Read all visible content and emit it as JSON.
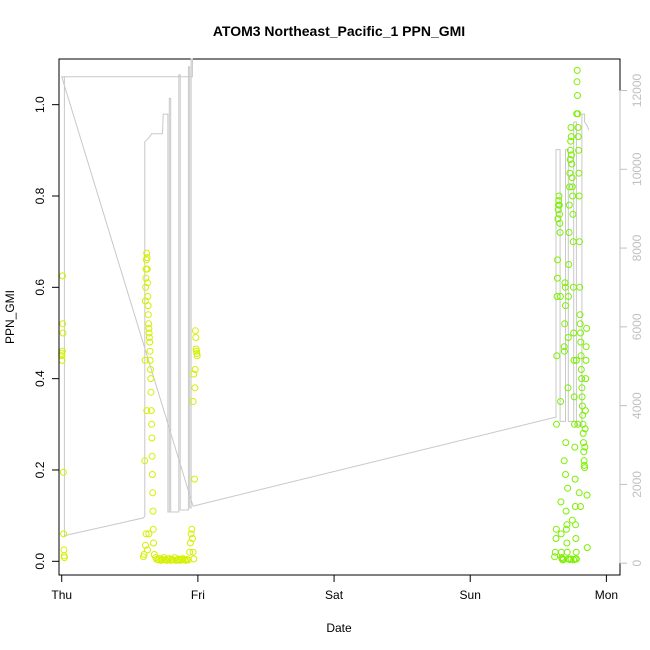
{
  "chart_data": {
    "type": "scatter",
    "title": "ATOM3 Northeast_Pacific_1 PPN_GMI",
    "xlabel": "Date",
    "ylabel": "PPN_GMI",
    "x_unit": "days since Thu 00:00",
    "xlim": [
      -0.02,
      4.1
    ],
    "ylim": [
      -0.03,
      1.1
    ],
    "x_ticks": [
      {
        "value": 0,
        "label": "Thu"
      },
      {
        "value": 1,
        "label": "Fri"
      },
      {
        "value": 2,
        "label": "Sat"
      },
      {
        "value": 3,
        "label": "Sun"
      },
      {
        "value": 4,
        "label": "Mon"
      }
    ],
    "y_ticks": [
      {
        "value": 0.0,
        "label": "0.0"
      },
      {
        "value": 0.2,
        "label": "0.2"
      },
      {
        "value": 0.4,
        "label": "0.4"
      },
      {
        "value": 0.6,
        "label": "0.6"
      },
      {
        "value": 0.8,
        "label": "0.8"
      },
      {
        "value": 1.0,
        "label": "1.0"
      }
    ],
    "y2lim": [
      -300,
      12800
    ],
    "y2_ticks": [
      {
        "value": 0,
        "label": "0"
      },
      {
        "value": 2000,
        "label": "2000"
      },
      {
        "value": 4000,
        "label": "4000"
      },
      {
        "value": 6000,
        "label": "6000"
      },
      {
        "value": 8000,
        "label": "8000"
      },
      {
        "value": 10000,
        "label": "10000"
      },
      {
        "value": 12000,
        "label": "12000"
      }
    ],
    "colors": {
      "points_early": "#d4f000",
      "points_late": "#7cf000",
      "depth_line": "#c8c8c8",
      "axis": "#000000",
      "right_axis": "#c0c0c0"
    },
    "series": [
      {
        "type": "scatter",
        "values": [
          [
            0.0,
            0.455
          ],
          [
            0.0,
            0.45
          ],
          [
            0.002,
            0.44
          ],
          [
            0.004,
            0.46
          ],
          [
            0.006,
            0.625
          ],
          [
            0.008,
            0.52
          ],
          [
            0.01,
            0.5
          ],
          [
            0.012,
            0.195
          ],
          [
            0.014,
            0.06
          ],
          [
            0.016,
            0.025
          ],
          [
            0.018,
            0.012
          ],
          [
            0.02,
            0.008
          ],
          [
            0.6,
            0.01
          ],
          [
            0.605,
            0.015
          ],
          [
            0.61,
            0.22
          ],
          [
            0.612,
            0.44
          ],
          [
            0.614,
            0.57
          ],
          [
            0.616,
            0.6
          ],
          [
            0.618,
            0.62
          ],
          [
            0.62,
            0.64
          ],
          [
            0.622,
            0.66
          ],
          [
            0.624,
            0.675
          ],
          [
            0.626,
            0.665
          ],
          [
            0.628,
            0.64
          ],
          [
            0.63,
            0.61
          ],
          [
            0.632,
            0.58
          ],
          [
            0.634,
            0.56
          ],
          [
            0.636,
            0.54
          ],
          [
            0.638,
            0.52
          ],
          [
            0.64,
            0.51
          ],
          [
            0.642,
            0.5
          ],
          [
            0.644,
            0.49
          ],
          [
            0.646,
            0.48
          ],
          [
            0.648,
            0.46
          ],
          [
            0.65,
            0.44
          ],
          [
            0.652,
            0.42
          ],
          [
            0.654,
            0.4
          ],
          [
            0.656,
            0.37
          ],
          [
            0.658,
            0.33
          ],
          [
            0.66,
            0.3
          ],
          [
            0.662,
            0.27
          ],
          [
            0.664,
            0.23
          ],
          [
            0.666,
            0.19
          ],
          [
            0.668,
            0.15
          ],
          [
            0.67,
            0.11
          ],
          [
            0.672,
            0.07
          ],
          [
            0.674,
            0.04
          ],
          [
            0.62,
            0.06
          ],
          [
            0.615,
            0.035
          ],
          [
            0.625,
            0.33
          ],
          [
            0.63,
            0.025
          ],
          [
            0.64,
            0.06
          ],
          [
            0.68,
            0.015
          ],
          [
            0.69,
            0.008
          ],
          [
            0.7,
            0.004
          ],
          [
            0.71,
            0.003
          ],
          [
            0.72,
            0.006
          ],
          [
            0.73,
            0.002
          ],
          [
            0.74,
            0.004
          ],
          [
            0.75,
            0.008
          ],
          [
            0.76,
            0.003
          ],
          [
            0.77,
            0.002
          ],
          [
            0.78,
            0.005
          ],
          [
            0.79,
            0.006
          ],
          [
            0.8,
            0.002
          ],
          [
            0.81,
            0.004
          ],
          [
            0.82,
            0.003
          ],
          [
            0.83,
            0.008
          ],
          [
            0.84,
            0.002
          ],
          [
            0.85,
            0.003
          ],
          [
            0.86,
            0.005
          ],
          [
            0.87,
            0.002
          ],
          [
            0.88,
            0.004
          ],
          [
            0.89,
            0.006
          ],
          [
            0.9,
            0.003
          ],
          [
            0.91,
            0.002
          ],
          [
            0.92,
            0.004
          ],
          [
            0.93,
            0.003
          ],
          [
            0.94,
            0.02
          ],
          [
            0.945,
            0.04
          ],
          [
            0.95,
            0.06
          ],
          [
            0.955,
            0.07
          ],
          [
            0.96,
            0.05
          ],
          [
            0.965,
            0.02
          ],
          [
            0.97,
            0.005
          ],
          [
            0.975,
            0.18
          ],
          [
            0.978,
            0.38
          ],
          [
            0.98,
            0.42
          ],
          [
            0.982,
            0.505
          ],
          [
            0.985,
            0.49
          ],
          [
            0.987,
            0.465
          ],
          [
            0.99,
            0.46
          ],
          [
            0.992,
            0.455
          ],
          [
            0.995,
            0.45
          ],
          [
            0.97,
            0.41
          ],
          [
            0.965,
            0.35
          ],
          [
            3.62,
            0.01
          ],
          [
            3.625,
            0.02
          ],
          [
            3.63,
            0.05
          ],
          [
            3.632,
            0.07
          ],
          [
            3.634,
            0.3
          ],
          [
            3.636,
            0.45
          ],
          [
            3.638,
            0.58
          ],
          [
            3.64,
            0.62
          ],
          [
            3.642,
            0.66
          ],
          [
            3.644,
            0.75
          ],
          [
            3.646,
            0.77
          ],
          [
            3.648,
            0.78
          ],
          [
            3.65,
            0.79
          ],
          [
            3.652,
            0.8
          ],
          [
            3.654,
            0.78
          ],
          [
            3.656,
            0.76
          ],
          [
            3.658,
            0.74
          ],
          [
            3.66,
            0.72
          ],
          [
            3.662,
            0.58
          ],
          [
            3.664,
            0.35
          ],
          [
            3.666,
            0.13
          ],
          [
            3.668,
            0.06
          ],
          [
            3.67,
            0.02
          ],
          [
            3.672,
            0.008
          ],
          [
            3.675,
            0.005
          ],
          [
            3.68,
            0.003
          ],
          [
            3.685,
            0.004
          ],
          [
            3.69,
            0.47
          ],
          [
            3.692,
            0.46
          ],
          [
            3.694,
            0.52
          ],
          [
            3.696,
            0.61
          ],
          [
            3.698,
            0.6
          ],
          [
            3.7,
            0.56
          ],
          [
            3.702,
            0.26
          ],
          [
            3.704,
            0.11
          ],
          [
            3.706,
            0.07
          ],
          [
            3.71,
            0.04
          ],
          [
            3.712,
            0.02
          ],
          [
            3.715,
            0.16
          ],
          [
            3.718,
            0.38
          ],
          [
            3.72,
            0.49
          ],
          [
            3.722,
            0.58
          ],
          [
            3.724,
            0.65
          ],
          [
            3.726,
            0.72
          ],
          [
            3.728,
            0.78
          ],
          [
            3.73,
            0.82
          ],
          [
            3.732,
            0.85
          ],
          [
            3.734,
            0.88
          ],
          [
            3.736,
            0.9
          ],
          [
            3.738,
            0.92
          ],
          [
            3.74,
            0.95
          ],
          [
            3.742,
            0.93
          ],
          [
            3.744,
            0.89
          ],
          [
            3.746,
            0.87
          ],
          [
            3.748,
            0.84
          ],
          [
            3.75,
            0.82
          ],
          [
            3.752,
            0.8
          ],
          [
            3.754,
            0.76
          ],
          [
            3.756,
            0.7
          ],
          [
            3.758,
            0.6
          ],
          [
            3.76,
            0.5
          ],
          [
            3.762,
            0.44
          ],
          [
            3.764,
            0.36
          ],
          [
            3.766,
            0.3
          ],
          [
            3.768,
            0.25
          ],
          [
            3.77,
            0.18
          ],
          [
            3.772,
            0.12
          ],
          [
            3.774,
            0.08
          ],
          [
            3.776,
            0.05
          ],
          [
            3.778,
            0.02
          ],
          [
            3.78,
            0.005
          ],
          [
            3.782,
            0.98
          ],
          [
            3.784,
            1.05
          ],
          [
            3.786,
            1.075
          ],
          [
            3.788,
            1.02
          ],
          [
            3.79,
            0.98
          ],
          [
            3.792,
            0.95
          ],
          [
            3.794,
            0.93
          ],
          [
            3.796,
            0.9
          ],
          [
            3.798,
            0.85
          ],
          [
            3.8,
            0.8
          ],
          [
            3.802,
            0.7
          ],
          [
            3.804,
            0.6
          ],
          [
            3.806,
            0.54
          ],
          [
            3.808,
            0.52
          ],
          [
            3.81,
            0.5
          ],
          [
            3.812,
            0.48
          ],
          [
            3.814,
            0.45
          ],
          [
            3.816,
            0.42
          ],
          [
            3.818,
            0.4
          ],
          [
            3.82,
            0.38
          ],
          [
            3.822,
            0.36
          ],
          [
            3.824,
            0.34
          ],
          [
            3.826,
            0.32
          ],
          [
            3.828,
            0.3
          ],
          [
            3.83,
            0.28
          ],
          [
            3.832,
            0.26
          ],
          [
            3.834,
            0.24
          ],
          [
            3.836,
            0.22
          ],
          [
            3.838,
            0.21
          ],
          [
            3.84,
            0.205
          ],
          [
            3.842,
            0.25
          ],
          [
            3.844,
            0.29
          ],
          [
            3.846,
            0.33
          ],
          [
            3.848,
            0.4
          ],
          [
            3.85,
            0.44
          ],
          [
            3.852,
            0.47
          ],
          [
            3.855,
            0.51
          ],
          [
            3.858,
            0.145
          ],
          [
            3.86,
            0.03
          ],
          [
            3.69,
            0.22
          ],
          [
            3.7,
            0.19
          ],
          [
            3.71,
            0.08
          ],
          [
            3.72,
            0.005
          ],
          [
            3.73,
            0.004
          ],
          [
            3.74,
            0.005
          ],
          [
            3.75,
            0.09
          ],
          [
            3.76,
            0.003
          ],
          [
            3.77,
            0.005
          ],
          [
            3.78,
            0.44
          ],
          [
            3.79,
            0.3
          ],
          [
            3.8,
            0.15
          ],
          [
            3.81,
            0.12
          ]
        ]
      },
      {
        "type": "line",
        "axis": "right",
        "values": [
          [
            0.0,
            12350
          ],
          [
            0.005,
            12350
          ],
          [
            0.02,
            12340
          ],
          [
            0.02,
            700
          ],
          [
            0.6,
            1150
          ],
          [
            0.61,
            1200
          ],
          [
            0.61,
            10700
          ],
          [
            0.64,
            10800
          ],
          [
            0.66,
            10900
          ],
          [
            0.74,
            10900
          ],
          [
            0.745,
            11400
          ],
          [
            0.78,
            11400
          ],
          [
            0.78,
            1300
          ],
          [
            0.79,
            1300
          ],
          [
            0.79,
            11800
          ],
          [
            0.8,
            11800
          ],
          [
            0.8,
            1300
          ],
          [
            0.86,
            1300
          ],
          [
            0.86,
            12400
          ],
          [
            0.87,
            12400
          ],
          [
            0.87,
            1350
          ],
          [
            0.93,
            1350
          ],
          [
            0.93,
            12600
          ],
          [
            0.94,
            12600
          ],
          [
            0.94,
            1400
          ],
          [
            0.95,
            1400
          ],
          [
            0.95,
            12800
          ],
          [
            0.96,
            12800
          ],
          [
            0.96,
            12350
          ],
          [
            0.0,
            12350
          ],
          [
            0.965,
            1450
          ],
          [
            3.62,
            3700
          ],
          [
            3.63,
            3700
          ],
          [
            3.63,
            10500
          ],
          [
            3.66,
            10500
          ],
          [
            3.66,
            3600
          ],
          [
            3.7,
            3600
          ],
          [
            3.7,
            10500
          ],
          [
            3.72,
            10500
          ],
          [
            3.72,
            3600
          ],
          [
            3.76,
            3600
          ],
          [
            3.76,
            11200
          ],
          [
            3.78,
            11200
          ],
          [
            3.78,
            3500
          ],
          [
            3.82,
            3500
          ],
          [
            3.82,
            11400
          ],
          [
            3.84,
            11400
          ],
          [
            3.84,
            11200
          ],
          [
            3.86,
            11100
          ],
          [
            3.87,
            11000
          ]
        ]
      }
    ]
  }
}
